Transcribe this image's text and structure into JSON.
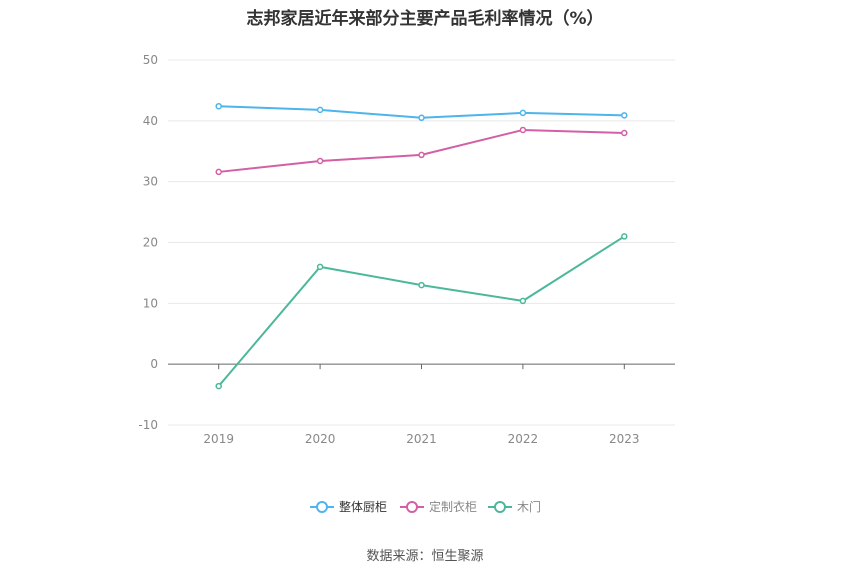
{
  "title": "志邦家居近年来部分主要产品毛利率情况（%）",
  "source": "数据来源：恒生聚源",
  "chart_data": {
    "type": "line",
    "title": "志邦家居近年来部分主要产品毛利率情况（%）",
    "xlabel": "",
    "ylabel": "",
    "categories": [
      "2019",
      "2020",
      "2021",
      "2022",
      "2023"
    ],
    "ylim": [
      -10,
      50
    ],
    "yticks": [
      50,
      40,
      30,
      20,
      10,
      0,
      -10
    ],
    "grid": true,
    "legend_position": "bottom",
    "series": [
      {
        "name": "整体厨柜",
        "color": "#4db4ec",
        "values": [
          42.4,
          41.8,
          40.5,
          41.3,
          40.9
        ]
      },
      {
        "name": "定制衣柜",
        "color": "#d35fa5",
        "values": [
          31.6,
          33.4,
          34.4,
          38.5,
          38.0
        ]
      },
      {
        "name": "木门",
        "color": "#4cb89b",
        "values": [
          -3.6,
          16.0,
          13.0,
          10.4,
          21.0
        ]
      }
    ]
  }
}
